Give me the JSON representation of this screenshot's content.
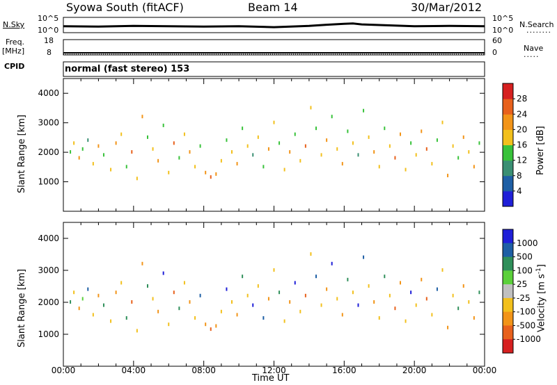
{
  "header": {
    "station": "Syowa South (fitACF)",
    "beam": "Beam 14",
    "date": "30/Mar/2012"
  },
  "side_labels": {
    "nsky": "N.Sky",
    "freq_1": "Freq.",
    "freq_2": "[MHz]",
    "cpid": "CPID",
    "nsearch": "N.Search",
    "nave": "Nave",
    "dotted": "........",
    "dotted_short": "....."
  },
  "noise_axis": {
    "left_top": "10^5",
    "left_bottom": "10^0",
    "right_top": "10^5",
    "right_bottom": "10^0"
  },
  "freq_axis": {
    "left_top": "18",
    "left_bottom": "8",
    "right_top": "60",
    "right_bottom": "0"
  },
  "cpid_text": "normal (fast stereo) 153",
  "x_axis_label": "Time UT",
  "colors": {
    "power": [
      "#1f1fd8",
      "#1e5fa5",
      "#3a8f73",
      "#38c23a",
      "#f2c01c",
      "#f29418",
      "#e8611c",
      "#d62020"
    ],
    "velocity": [
      "#1f1fd8",
      "#1e5fa5",
      "#2f8f5a",
      "#5bd03a",
      "#c0c0c0",
      "#f2c01c",
      "#f29418",
      "#e8611c",
      "#d62020"
    ]
  },
  "chart_data": [
    {
      "type": "scatter",
      "name": "noise",
      "x": [
        0,
        2,
        4,
        6,
        8,
        10,
        12,
        14,
        15,
        16,
        16.5,
        17,
        18,
        20,
        22,
        24
      ],
      "y": [
        2.1,
        2.0,
        2.2,
        2.1,
        2.0,
        2.1,
        1.8,
        2.2,
        2.6,
        2.9,
        3.0,
        2.7,
        2.5,
        2.1,
        2.2,
        2.1
      ],
      "xlim": [
        0,
        24
      ],
      "ylim_log10": [
        0,
        5
      ]
    },
    {
      "type": "heatmap",
      "name": "power",
      "xlabel": "Time UT",
      "ylabel": "Slant Range [km]",
      "xlim": [
        0,
        24
      ],
      "ylim": [
        0,
        4500
      ],
      "xticks": [
        "00:00",
        "04:00",
        "08:00",
        "12:00",
        "16:00",
        "20:00",
        "00:00"
      ],
      "yticks": [
        1000,
        2000,
        3000,
        4000
      ],
      "colorbar": {
        "label": "Power [dB]",
        "ticks": [
          4,
          8,
          12,
          16,
          20,
          24,
          28
        ],
        "range": [
          0,
          32
        ]
      },
      "cells": [
        [
          0.4,
          2000,
          12
        ],
        [
          0.6,
          2300,
          16
        ],
        [
          0.9,
          1800,
          20
        ],
        [
          1.1,
          2100,
          12
        ],
        [
          1.4,
          2400,
          8
        ],
        [
          1.7,
          1600,
          16
        ],
        [
          2.0,
          2200,
          20
        ],
        [
          2.3,
          1900,
          12
        ],
        [
          2.7,
          1400,
          16
        ],
        [
          3.0,
          2300,
          20
        ],
        [
          3.3,
          2600,
          16
        ],
        [
          3.6,
          1500,
          12
        ],
        [
          3.9,
          2000,
          24
        ],
        [
          4.2,
          1100,
          16
        ],
        [
          4.5,
          3200,
          20
        ],
        [
          4.8,
          2500,
          12
        ],
        [
          5.1,
          2100,
          16
        ],
        [
          5.4,
          1700,
          20
        ],
        [
          5.7,
          2900,
          12
        ],
        [
          6.0,
          1300,
          16
        ],
        [
          6.3,
          2300,
          24
        ],
        [
          6.6,
          1800,
          12
        ],
        [
          6.9,
          2600,
          16
        ],
        [
          7.2,
          2000,
          20
        ],
        [
          7.5,
          1500,
          16
        ],
        [
          7.8,
          2200,
          12
        ],
        [
          8.1,
          1300,
          20
        ],
        [
          8.4,
          1150,
          24
        ],
        [
          8.7,
          1250,
          20
        ],
        [
          9.0,
          1700,
          16
        ],
        [
          9.3,
          2400,
          12
        ],
        [
          9.6,
          2000,
          16
        ],
        [
          9.9,
          1600,
          20
        ],
        [
          10.2,
          2800,
          12
        ],
        [
          10.5,
          2200,
          16
        ],
        [
          10.8,
          1900,
          8
        ],
        [
          11.1,
          2500,
          16
        ],
        [
          11.4,
          1500,
          12
        ],
        [
          11.7,
          2100,
          20
        ],
        [
          12.0,
          3000,
          16
        ],
        [
          12.3,
          2300,
          12
        ],
        [
          12.6,
          1400,
          16
        ],
        [
          12.9,
          2000,
          20
        ],
        [
          13.2,
          2600,
          12
        ],
        [
          13.5,
          1700,
          16
        ],
        [
          13.8,
          2200,
          24
        ],
        [
          14.1,
          3500,
          16
        ],
        [
          14.4,
          2800,
          12
        ],
        [
          14.7,
          1900,
          16
        ],
        [
          15.0,
          2400,
          20
        ],
        [
          15.3,
          3200,
          12
        ],
        [
          15.6,
          2100,
          16
        ],
        [
          15.9,
          1600,
          20
        ],
        [
          16.2,
          2700,
          12
        ],
        [
          16.5,
          2300,
          16
        ],
        [
          16.8,
          1900,
          8
        ],
        [
          17.1,
          3400,
          12
        ],
        [
          17.4,
          2500,
          16
        ],
        [
          17.7,
          2000,
          20
        ],
        [
          18.0,
          1500,
          16
        ],
        [
          18.3,
          2800,
          12
        ],
        [
          18.6,
          2200,
          16
        ],
        [
          18.9,
          1800,
          24
        ],
        [
          19.2,
          2600,
          20
        ],
        [
          19.5,
          1400,
          16
        ],
        [
          19.8,
          2300,
          12
        ],
        [
          20.1,
          1900,
          16
        ],
        [
          20.4,
          2700,
          20
        ],
        [
          20.7,
          2100,
          24
        ],
        [
          21.0,
          1600,
          16
        ],
        [
          21.3,
          2400,
          12
        ],
        [
          21.6,
          3000,
          16
        ],
        [
          21.9,
          1200,
          20
        ],
        [
          22.2,
          2200,
          16
        ],
        [
          22.5,
          1800,
          12
        ],
        [
          22.8,
          2500,
          20
        ],
        [
          23.1,
          2000,
          16
        ],
        [
          23.4,
          1500,
          20
        ],
        [
          23.7,
          2300,
          12
        ]
      ]
    },
    {
      "type": "heatmap",
      "name": "velocity",
      "xlabel": "Time UT",
      "ylabel": "Slant Range [km]",
      "xlim": [
        0,
        24
      ],
      "ylim": [
        0,
        4500
      ],
      "xticks": [
        "00:00",
        "04:00",
        "08:00",
        "12:00",
        "16:00",
        "20:00",
        "00:00"
      ],
      "yticks": [
        1000,
        2000,
        3000,
        4000
      ],
      "colorbar": {
        "label": "Velocity [m s",
        "label_sup": "-1",
        "label_close": "]",
        "ticks": [
          "1000",
          "500",
          "100",
          "25",
          "-25",
          "-100",
          "-500",
          "-1000"
        ]
      },
      "cells": [
        [
          0.4,
          2000,
          100
        ],
        [
          0.6,
          2300,
          -100
        ],
        [
          0.9,
          1800,
          -500
        ],
        [
          1.1,
          2100,
          25
        ],
        [
          1.4,
          2400,
          500
        ],
        [
          1.7,
          1600,
          -100
        ],
        [
          2.0,
          2200,
          -500
        ],
        [
          2.3,
          1900,
          100
        ],
        [
          2.7,
          1400,
          -100
        ],
        [
          3.0,
          2300,
          -500
        ],
        [
          3.3,
          2600,
          -100
        ],
        [
          3.6,
          1500,
          100
        ],
        [
          3.9,
          2000,
          -1000
        ],
        [
          4.2,
          1100,
          -100
        ],
        [
          4.5,
          3200,
          -500
        ],
        [
          4.8,
          2500,
          100
        ],
        [
          5.1,
          2100,
          -100
        ],
        [
          5.4,
          1700,
          -500
        ],
        [
          5.7,
          2900,
          1000
        ],
        [
          6.0,
          1300,
          -100
        ],
        [
          6.3,
          2300,
          -1000
        ],
        [
          6.6,
          1800,
          100
        ],
        [
          6.9,
          2600,
          -100
        ],
        [
          7.2,
          2000,
          -500
        ],
        [
          7.5,
          1500,
          -100
        ],
        [
          7.8,
          2200,
          500
        ],
        [
          8.1,
          1300,
          -500
        ],
        [
          8.4,
          1150,
          -1000
        ],
        [
          8.7,
          1250,
          -500
        ],
        [
          9.0,
          1700,
          -100
        ],
        [
          9.3,
          2400,
          1000
        ],
        [
          9.6,
          2000,
          -100
        ],
        [
          9.9,
          1600,
          -500
        ],
        [
          10.2,
          2800,
          100
        ],
        [
          10.5,
          2200,
          -100
        ],
        [
          10.8,
          1900,
          1000
        ],
        [
          11.1,
          2500,
          -100
        ],
        [
          11.4,
          1500,
          500
        ],
        [
          11.7,
          2100,
          -500
        ],
        [
          12.0,
          3000,
          -100
        ],
        [
          12.3,
          2300,
          100
        ],
        [
          12.6,
          1400,
          -100
        ],
        [
          12.9,
          2000,
          -500
        ],
        [
          13.2,
          2600,
          1000
        ],
        [
          13.5,
          1700,
          -100
        ],
        [
          13.8,
          2200,
          -1000
        ],
        [
          14.1,
          3500,
          -100
        ],
        [
          14.4,
          2800,
          500
        ],
        [
          14.7,
          1900,
          -100
        ],
        [
          15.0,
          2400,
          -500
        ],
        [
          15.3,
          3200,
          1000
        ],
        [
          15.6,
          2100,
          -100
        ],
        [
          15.9,
          1600,
          -500
        ],
        [
          16.2,
          2700,
          100
        ],
        [
          16.5,
          2300,
          -100
        ],
        [
          16.8,
          1900,
          1000
        ],
        [
          17.1,
          3400,
          500
        ],
        [
          17.4,
          2500,
          -100
        ],
        [
          17.7,
          2000,
          -500
        ],
        [
          18.0,
          1500,
          -100
        ],
        [
          18.3,
          2800,
          100
        ],
        [
          18.6,
          2200,
          -100
        ],
        [
          18.9,
          1800,
          -1000
        ],
        [
          19.2,
          2600,
          -500
        ],
        [
          19.5,
          1400,
          -100
        ],
        [
          19.8,
          2300,
          1000
        ],
        [
          20.1,
          1900,
          -100
        ],
        [
          20.4,
          2700,
          -500
        ],
        [
          20.7,
          2100,
          -1000
        ],
        [
          21.0,
          1600,
          -100
        ],
        [
          21.3,
          2400,
          500
        ],
        [
          21.6,
          3000,
          -100
        ],
        [
          21.9,
          1200,
          -500
        ],
        [
          22.2,
          2200,
          -100
        ],
        [
          22.5,
          1800,
          100
        ],
        [
          22.8,
          2500,
          -500
        ],
        [
          23.1,
          2000,
          -100
        ],
        [
          23.4,
          1500,
          -500
        ],
        [
          23.7,
          2300,
          100
        ]
      ]
    }
  ]
}
